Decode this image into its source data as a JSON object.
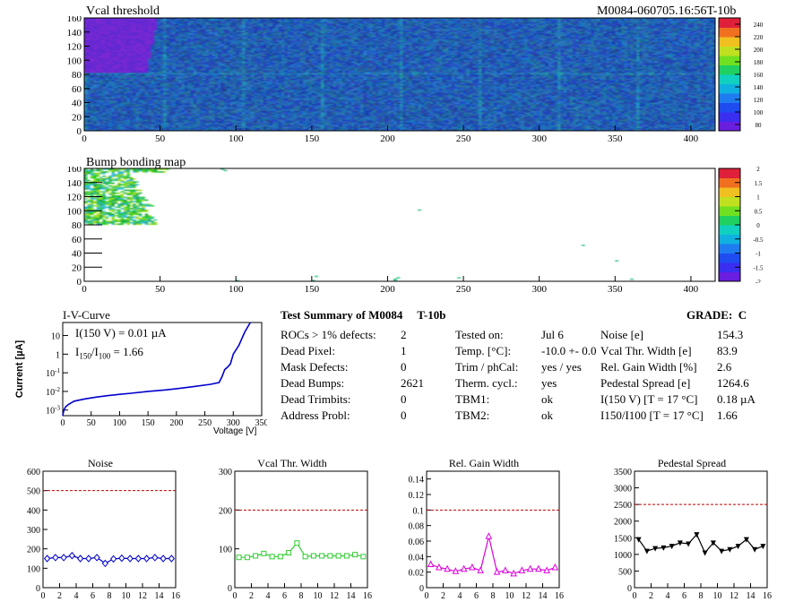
{
  "header": {
    "title": "Vcal threshold",
    "module_id": "M0084-060705.16:56T-10b"
  },
  "colors": {
    "heat_low": "#6a1ee0",
    "heat_mid": "#1e6cf0",
    "heat_high": "#e0203a",
    "grade_line": "#c00000",
    "iv_curve": "#0000cc",
    "noise": "#0000cc",
    "vcal": "#33cc33",
    "gain": "#dd00dd",
    "pedestal": "#000000"
  },
  "chart_data": [
    {
      "type": "heatmap",
      "name": "vcal-threshold",
      "title": "Vcal threshold",
      "xlim": [
        0,
        416
      ],
      "ylim": [
        0,
        160
      ],
      "x_ticks": [
        "0",
        "50",
        "100",
        "150",
        "200",
        "250",
        "300",
        "350",
        "400"
      ],
      "y_ticks": [
        "0",
        "20",
        "40",
        "60",
        "80",
        "100",
        "120",
        "140",
        "160"
      ],
      "z_ticks": [
        "80",
        "100",
        "120",
        "140",
        "160",
        "180",
        "200",
        "220",
        "240"
      ],
      "zlim": [
        70,
        250
      ]
    },
    {
      "type": "heatmap",
      "name": "bump-bonding",
      "title": "Bump bonding map",
      "xlim": [
        0,
        416
      ],
      "ylim": [
        0,
        160
      ],
      "x_ticks": [
        "0",
        "50",
        "100",
        "150",
        "200",
        "250",
        "300",
        "350",
        "400"
      ],
      "y_ticks": [
        "0",
        "20",
        "40",
        "60",
        "80",
        "100",
        "120",
        "140",
        "160"
      ],
      "z_ticks": [
        "2",
        "1.5",
        "1",
        "0.5",
        "0",
        "-0.5",
        "-1",
        "-1.5",
        "-2"
      ],
      "zlim": [
        -2,
        2
      ]
    },
    {
      "type": "line",
      "name": "iv-curve",
      "title": "I-V-Curve",
      "xlabel": "Voltage [V]",
      "ylabel": "Current [µA]",
      "xlim": [
        0,
        350
      ],
      "ylim": [
        0.0005,
        50
      ],
      "yscale": "log",
      "x_ticks": [
        "0",
        "50",
        "100",
        "150",
        "200",
        "250",
        "300",
        "350"
      ],
      "annot_line1": "I(150 V) = 0.01 µA",
      "annot_ratio_prefix": "I",
      "annot_ratio_sub1": "150",
      "annot_ratio_sep": "/I",
      "annot_ratio_sub2": "100",
      "annot_ratio_value": "=  1.66",
      "x": [
        0,
        2,
        5,
        10,
        20,
        40,
        60,
        80,
        100,
        120,
        150,
        180,
        200,
        230,
        260,
        275,
        280,
        285,
        290,
        295,
        300,
        310,
        320,
        330
      ],
      "y": [
        0.0005,
        0.001,
        0.0015,
        0.002,
        0.003,
        0.004,
        0.005,
        0.006,
        0.007,
        0.008,
        0.01,
        0.012,
        0.014,
        0.018,
        0.024,
        0.03,
        0.06,
        0.15,
        0.2,
        0.3,
        1.0,
        3.0,
        15.0,
        50.0
      ]
    },
    {
      "type": "line",
      "name": "noise",
      "title": "Noise",
      "xlim": [
        0,
        16
      ],
      "ylim": [
        0,
        600
      ],
      "grade_line": 500,
      "x_ticks": [
        "0",
        "2",
        "4",
        "6",
        "8",
        "10",
        "12",
        "14",
        "16"
      ],
      "y_ticks": [
        "0",
        "100",
        "200",
        "300",
        "400",
        "500",
        "600"
      ],
      "x": [
        0.5,
        1.5,
        2.5,
        3.5,
        4.5,
        5.5,
        6.5,
        7.5,
        8.5,
        9.5,
        10.5,
        11.5,
        12.5,
        13.5,
        14.5,
        15.5
      ],
      "y": [
        150,
        155,
        155,
        165,
        150,
        150,
        155,
        125,
        148,
        152,
        150,
        150,
        150,
        155,
        150,
        150
      ],
      "marker": "diamond"
    },
    {
      "type": "line",
      "name": "vcal-width",
      "title": "Vcal Thr. Width",
      "xlim": [
        0,
        16
      ],
      "ylim": [
        0,
        300
      ],
      "grade_line": 200,
      "x_ticks": [
        "0",
        "2",
        "4",
        "6",
        "8",
        "10",
        "12",
        "14",
        "16"
      ],
      "y_ticks": [
        "0",
        "100",
        "200",
        "300"
      ],
      "x": [
        0.5,
        1.5,
        2.5,
        3.5,
        4.5,
        5.5,
        6.5,
        7.5,
        8.5,
        9.5,
        10.5,
        11.5,
        12.5,
        13.5,
        14.5,
        15.5
      ],
      "y": [
        78,
        78,
        82,
        88,
        80,
        80,
        90,
        115,
        80,
        82,
        82,
        82,
        82,
        82,
        85,
        80
      ],
      "marker": "square"
    },
    {
      "type": "line",
      "name": "gain-width",
      "title": "Rel. Gain Width",
      "xlim": [
        0,
        16
      ],
      "ylim": [
        0,
        0.15
      ],
      "grade_line": 0.1,
      "x_ticks": [
        "0",
        "2",
        "4",
        "6",
        "8",
        "10",
        "12",
        "14",
        "16"
      ],
      "y_ticks": [
        "0",
        "0.02",
        "0.04",
        "0.06",
        "0.08",
        "0.1",
        "0.12",
        "0.14"
      ],
      "x": [
        0.5,
        1.5,
        2.5,
        3.5,
        4.5,
        5.5,
        6.5,
        7.5,
        8.5,
        9.5,
        10.5,
        11.5,
        12.5,
        13.5,
        14.5,
        15.5
      ],
      "y": [
        0.03,
        0.026,
        0.024,
        0.021,
        0.024,
        0.026,
        0.022,
        0.066,
        0.02,
        0.022,
        0.018,
        0.022,
        0.024,
        0.024,
        0.022,
        0.026
      ],
      "marker": "triangle"
    },
    {
      "type": "line",
      "name": "pedestal-spread",
      "title": "Pedestal Spread",
      "xlim": [
        0,
        16
      ],
      "ylim": [
        0,
        3500
      ],
      "grade_line": 2500,
      "x_ticks": [
        "0",
        "2",
        "4",
        "6",
        "8",
        "10",
        "12",
        "14",
        "16"
      ],
      "y_ticks": [
        "0",
        "500",
        "1000",
        "1500",
        "2000",
        "2500",
        "3000",
        "3500"
      ],
      "x": [
        0.5,
        1.5,
        2.5,
        3.5,
        4.5,
        5.5,
        6.5,
        7.5,
        8.5,
        9.5,
        10.5,
        11.5,
        12.5,
        13.5,
        14.5,
        15.5
      ],
      "y": [
        1450,
        1100,
        1180,
        1200,
        1250,
        1350,
        1320,
        1600,
        1050,
        1350,
        1100,
        1150,
        1250,
        1450,
        1150,
        1250
      ],
      "marker": "triangle-down"
    }
  ],
  "summary": {
    "title": "Test Summary of M0084     T-10b",
    "grade": "GRADE:  C",
    "col1": [
      {
        "label": "ROCs > 1% defects:",
        "value": "2"
      },
      {
        "label": "Dead Pixel:",
        "value": "1"
      },
      {
        "label": "Mask Defects:",
        "value": "0"
      },
      {
        "label": "Dead Bumps:",
        "value": "2621"
      },
      {
        "label": "Dead Trimbits:",
        "value": "0"
      },
      {
        "label": "Address Probl:",
        "value": "0"
      }
    ],
    "col2": [
      {
        "label": "Tested on:",
        "value": "Jul 6"
      },
      {
        "label": "Temp. [°C]:",
        "value": "-10.0 +- 0.0"
      },
      {
        "label": "Trim / phCal:",
        "value": "yes / yes"
      },
      {
        "label": "Therm. cycl.:",
        "value": "yes"
      },
      {
        "label": "TBM1:",
        "value": "ok"
      },
      {
        "label": "TBM2:",
        "value": "ok"
      }
    ],
    "col3": [
      {
        "label": "Noise [e]",
        "value": "154.3"
      },
      {
        "label": "Vcal Thr. Width [e]",
        "value": "83.9"
      },
      {
        "label": "Rel. Gain Width [%]",
        "value": "2.6"
      },
      {
        "label": "Pedestal Spread [e]",
        "value": "1264.6"
      },
      {
        "label": "I(150 V) [T = 17 °C]",
        "value": "0.18 µA"
      },
      {
        "label": "I150/I100  [T = 17 °C]",
        "value": "1.66"
      }
    ]
  }
}
